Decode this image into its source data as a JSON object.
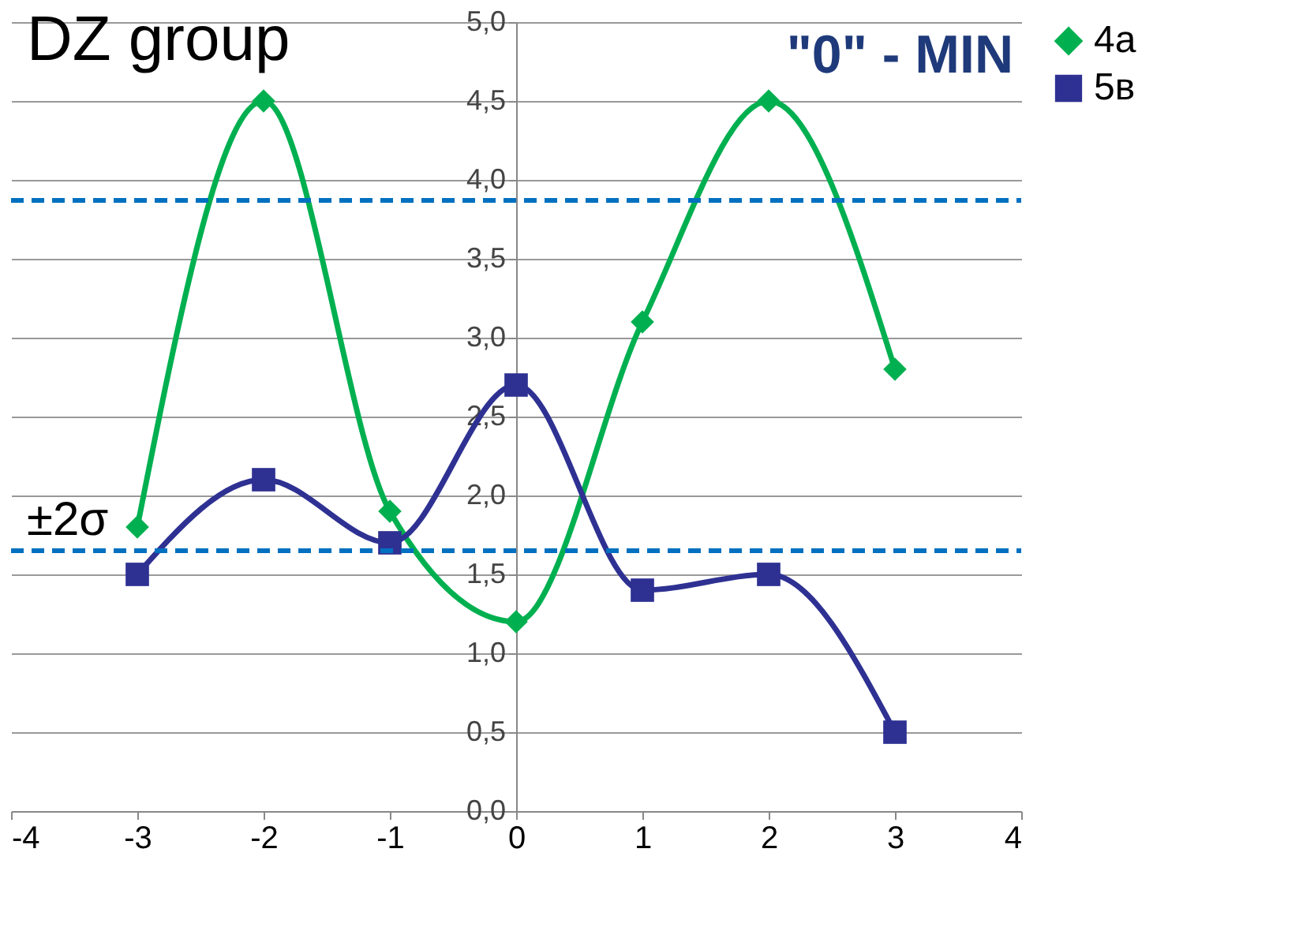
{
  "chart_data": {
    "type": "line",
    "title": "DZ  group",
    "annotations": [
      "\"0\" - MIN"
    ],
    "x": [
      -3,
      -2,
      -1,
      0,
      1,
      2,
      3
    ],
    "series": [
      {
        "name": "4a",
        "color": "#00b050",
        "marker": "diamond",
        "values": [
          1.8,
          4.5,
          1.9,
          1.2,
          3.1,
          4.5,
          2.8
        ]
      },
      {
        "name": "5в",
        "color": "#2e3192",
        "marker": "square",
        "values": [
          1.5,
          2.1,
          1.7,
          2.7,
          1.4,
          1.5,
          0.5
        ]
      }
    ],
    "xlim": [
      -4,
      4
    ],
    "xticks": [
      -4,
      -3,
      -2,
      -1,
      0,
      1,
      2,
      3,
      4
    ],
    "ylim": [
      0,
      5
    ],
    "yticks": [
      {
        "value": 0,
        "label": "0,0"
      },
      {
        "value": 0.5,
        "label": "0,5"
      },
      {
        "value": 1,
        "label": "1,0"
      },
      {
        "value": 1.5,
        "label": "1,5"
      },
      {
        "value": 2,
        "label": "2,0"
      },
      {
        "value": 2.5,
        "label": "2,5"
      },
      {
        "value": 3,
        "label": "3,0"
      },
      {
        "value": 3.5,
        "label": "3,5"
      },
      {
        "value": 4,
        "label": "4,0"
      },
      {
        "value": 4.5,
        "label": "4,5"
      },
      {
        "value": 5,
        "label": "5,0"
      }
    ],
    "ref_lines": [
      {
        "axis": "y",
        "value": 3.87,
        "label": null,
        "color": "#0070c0",
        "line_style": "dashed"
      },
      {
        "axis": "y",
        "value": 1.65,
        "label": "±2σ",
        "color": "#0070c0",
        "line_style": "dashed"
      }
    ],
    "grid": "y",
    "legend": "right",
    "line_style": "solid"
  }
}
